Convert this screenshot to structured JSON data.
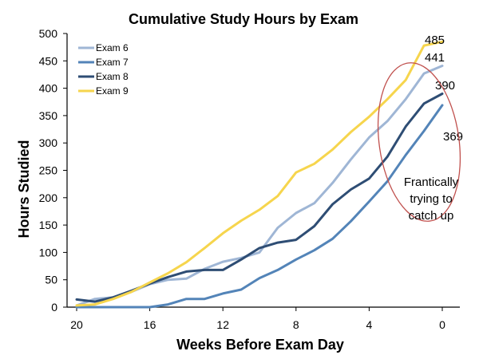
{
  "chart_data": {
    "type": "line",
    "title": "Cumulative Study Hours by Exam",
    "xlabel": "Weeks Before Exam Day",
    "ylabel": "Hours Studied",
    "xlim": [
      20,
      0
    ],
    "ylim": [
      0,
      500
    ],
    "x_ticks": [
      20,
      16,
      12,
      8,
      4,
      0
    ],
    "y_ticks": [
      0,
      50,
      100,
      150,
      200,
      250,
      300,
      350,
      400,
      450,
      500
    ],
    "x": [
      20,
      19,
      18,
      17,
      16,
      15,
      14,
      13,
      12,
      11,
      10,
      9,
      8,
      7,
      6,
      5,
      4,
      3,
      2,
      1,
      0
    ],
    "grid": false,
    "legend": "top-left",
    "series": [
      {
        "name": "Exam 6",
        "color": "#9fb6d5",
        "values": [
          3,
          15,
          18,
          28,
          42,
          50,
          52,
          70,
          83,
          90,
          100,
          145,
          172,
          190,
          227,
          270,
          310,
          340,
          380,
          427,
          441
        ]
      },
      {
        "name": "Exam 7",
        "color": "#5384b8",
        "values": [
          0,
          0,
          0,
          0,
          0,
          5,
          15,
          15,
          25,
          32,
          53,
          68,
          87,
          104,
          125,
          157,
          193,
          230,
          278,
          322,
          369
        ]
      },
      {
        "name": "Exam 8",
        "color": "#2e4d74",
        "values": [
          14,
          10,
          18,
          30,
          43,
          55,
          65,
          68,
          68,
          87,
          108,
          118,
          123,
          148,
          188,
          215,
          235,
          275,
          330,
          372,
          390
        ]
      },
      {
        "name": "Exam 9",
        "color": "#f6d54d",
        "values": [
          3,
          5,
          15,
          28,
          45,
          62,
          82,
          108,
          135,
          158,
          178,
          203,
          246,
          262,
          288,
          320,
          348,
          380,
          415,
          478,
          485
        ]
      }
    ],
    "end_labels": [
      "441",
      "369",
      "390",
      "485"
    ],
    "annotation": {
      "lines": [
        "Frantically",
        "trying to",
        "catch up"
      ],
      "ellipse_color": "#c0504d"
    }
  }
}
